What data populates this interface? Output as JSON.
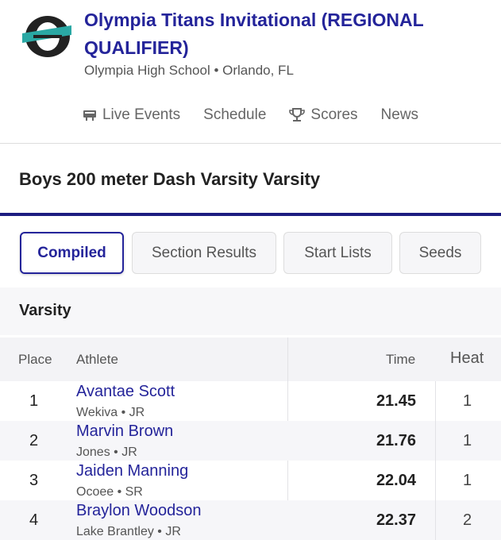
{
  "header": {
    "title": "Olympia Titans Invitational (REGIONAL QUALIFIER)",
    "subtitle": "Olympia High School • Orlando, FL"
  },
  "nav": [
    "Live Events",
    "Schedule",
    "Scores",
    "News"
  ],
  "event": {
    "title": "Boys 200 meter Dash Varsity Varsity"
  },
  "tabs": [
    "Compiled",
    "Section Results",
    "Start Lists",
    "Seeds"
  ],
  "section": {
    "title": "Varsity"
  },
  "table": {
    "columns": [
      "Place",
      "Athlete",
      "Time",
      "Heat"
    ],
    "rows": [
      {
        "place": 1,
        "athlete": "Avantae Scott",
        "team": "Wekiva • JR",
        "time": 21.45,
        "heat": 1
      },
      {
        "place": 2,
        "athlete": "Marvin Brown",
        "team": "Jones • JR",
        "time": 21.76,
        "heat": 1
      },
      {
        "place": 3,
        "athlete": "Jaiden Manning",
        "team": "Ocoee • SR",
        "time": 22.04,
        "heat": 1
      },
      {
        "place": 4,
        "athlete": "Braylon Woodson",
        "team": "Lake Brantley • JR",
        "time": 22.37,
        "heat": 2
      }
    ]
  }
}
